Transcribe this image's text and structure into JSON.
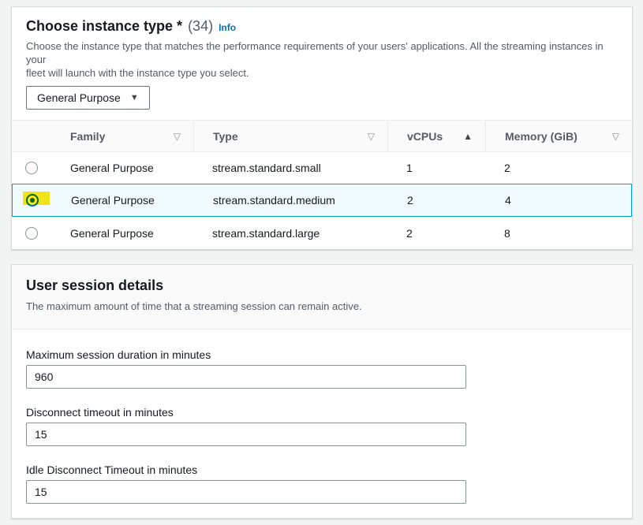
{
  "icons": {
    "caret_down": "▼",
    "sort_unsorted": "▽",
    "sort_asc": "▲"
  },
  "colors": {
    "accent_blue": "#0073bb",
    "info_link": "#0073bb",
    "selected_row_bg": "#f1faff",
    "selected_row_border": "#00a1c9",
    "highlight_yellow": "#ffe600",
    "page_background": "#f2f3f3"
  },
  "instance_panel": {
    "title": "Choose instance type *",
    "count": "(34)",
    "info_label": "Info",
    "description_line1": "Choose the instance type that matches the performance requirements of your users' applications. All the streaming instances in your",
    "description_line2": "fleet will launch with the instance type you select.",
    "family_dropdown": {
      "value": "General Purpose"
    },
    "table": {
      "columns": {
        "family": "Family",
        "type": "Type",
        "vcpus": "vCPUs",
        "memory": "Memory (GiB)"
      },
      "sort_state": "vCPUs ascending",
      "rows": [
        {
          "family": "General Purpose",
          "type": "stream.standard.small",
          "vcpus": "1",
          "memory": "2",
          "selected": false
        },
        {
          "family": "General Purpose",
          "type": "stream.standard.medium",
          "vcpus": "2",
          "memory": "4",
          "selected": true
        },
        {
          "family": "General Purpose",
          "type": "stream.standard.large",
          "vcpus": "2",
          "memory": "8",
          "selected": false
        }
      ]
    }
  },
  "session_panel": {
    "title": "User session details",
    "description": "The maximum amount of time that a streaming session can remain active.",
    "fields": [
      {
        "label": "Maximum session duration in minutes",
        "value": "960"
      },
      {
        "label": "Disconnect timeout in minutes",
        "value": "15"
      },
      {
        "label": "Idle Disconnect Timeout in minutes",
        "value": "15"
      }
    ]
  }
}
